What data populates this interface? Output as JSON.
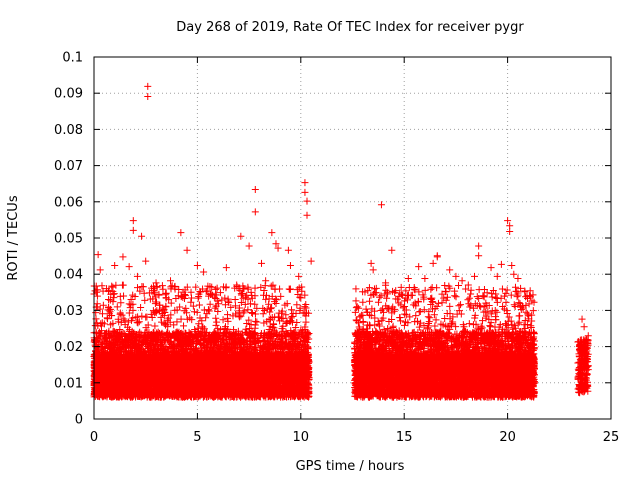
{
  "chart_data": {
    "type": "scatter",
    "title": "Day 268 of 2019, Rate Of TEC Index for receiver pygr",
    "xlabel": "GPS time / hours",
    "ylabel": "ROTI / TECUs",
    "xlim": [
      0,
      25
    ],
    "ylim": [
      0,
      0.1
    ],
    "xticks": [
      "0",
      "5",
      "10",
      "15",
      "20",
      "25"
    ],
    "yticks": [
      "0",
      "0.01",
      "0.02",
      "0.03",
      "0.04",
      "0.05",
      "0.06",
      "0.07",
      "0.08",
      "0.09",
      "0.1"
    ],
    "grid": true,
    "marker": "plus",
    "color": "#ff0000",
    "series": [
      {
        "x": [
          2.6,
          2.6,
          7.8,
          7.8,
          10.2,
          10.2,
          10.3,
          10.3,
          13.9,
          20.0,
          20.1,
          20.1,
          1.9,
          1.9,
          2.3,
          4.2,
          4.5,
          7.1,
          7.5,
          8.6,
          8.8,
          8.9,
          9.4,
          9.5,
          14.4,
          16.6,
          18.6,
          18.6,
          19.7,
          0.2,
          0.3,
          1.0,
          1.4,
          1.7,
          2.1,
          2.5,
          3.0,
          3.7,
          5.0,
          5.3,
          6.4,
          6.9,
          8.1,
          8.3,
          9.9,
          10.5,
          13.4,
          13.5,
          14.1,
          15.2,
          15.7,
          16.0,
          16.4,
          16.6,
          17.2,
          17.5,
          17.8,
          18.1,
          18.4,
          19.2,
          19.5,
          20.2,
          20.3,
          20.5,
          21.0,
          23.6,
          23.7,
          23.9
        ],
        "y": [
          0.0919,
          0.0891,
          0.0634,
          0.0572,
          0.0653,
          0.0626,
          0.0602,
          0.0563,
          0.0592,
          0.0548,
          0.0534,
          0.0518,
          0.0548,
          0.0521,
          0.0505,
          0.0515,
          0.0466,
          0.0505,
          0.0478,
          0.0515,
          0.0484,
          0.0472,
          0.0466,
          0.0424,
          0.0466,
          0.0451,
          0.0478,
          0.0451,
          0.0427,
          0.0454,
          0.0412,
          0.0424,
          0.0448,
          0.0421,
          0.0394,
          0.0436,
          0.0376,
          0.0382,
          0.0424,
          0.0406,
          0.0418,
          0.037,
          0.043,
          0.0382,
          0.0394,
          0.0436,
          0.043,
          0.0412,
          0.0376,
          0.0388,
          0.0421,
          0.0388,
          0.043,
          0.0448,
          0.0412,
          0.0394,
          0.0382,
          0.037,
          0.0394,
          0.0418,
          0.0394,
          0.0424,
          0.04,
          0.0388,
          0.0285,
          0.0276,
          0.0255,
          0.023
        ]
      }
    ]
  }
}
